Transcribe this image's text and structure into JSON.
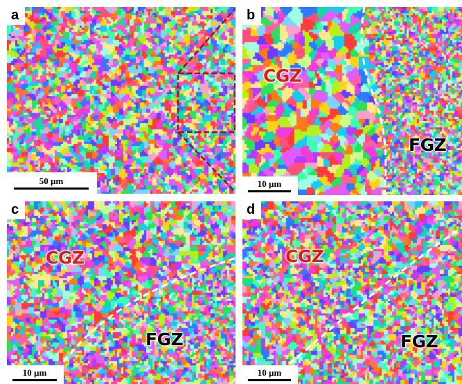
{
  "panels": [
    {
      "id": "a",
      "label": "a",
      "scale": "50 µm",
      "zones": []
    },
    {
      "id": "b",
      "label": "b",
      "scale": "10 µm",
      "zones": [
        {
          "text": "CGZ",
          "color": "#d81e1e"
        },
        {
          "text": "FGZ",
          "color": "#000000"
        }
      ]
    },
    {
      "id": "c",
      "label": "c",
      "scale": "10 µm",
      "zones": [
        {
          "text": "CGZ",
          "color": "#d81e1e"
        },
        {
          "text": "FGZ",
          "color": "#000000"
        }
      ]
    },
    {
      "id": "d",
      "label": "d",
      "scale": "10 µm",
      "zones": [
        {
          "text": "CGZ",
          "color": "#d81e1e"
        },
        {
          "text": "FGZ",
          "color": "#000000"
        }
      ]
    }
  ],
  "colors": {
    "boundary_line": "#ffffff",
    "inset_box": "#8b1a1a",
    "cgz_text": "#d81e1e",
    "fgz_text": "#000000"
  }
}
